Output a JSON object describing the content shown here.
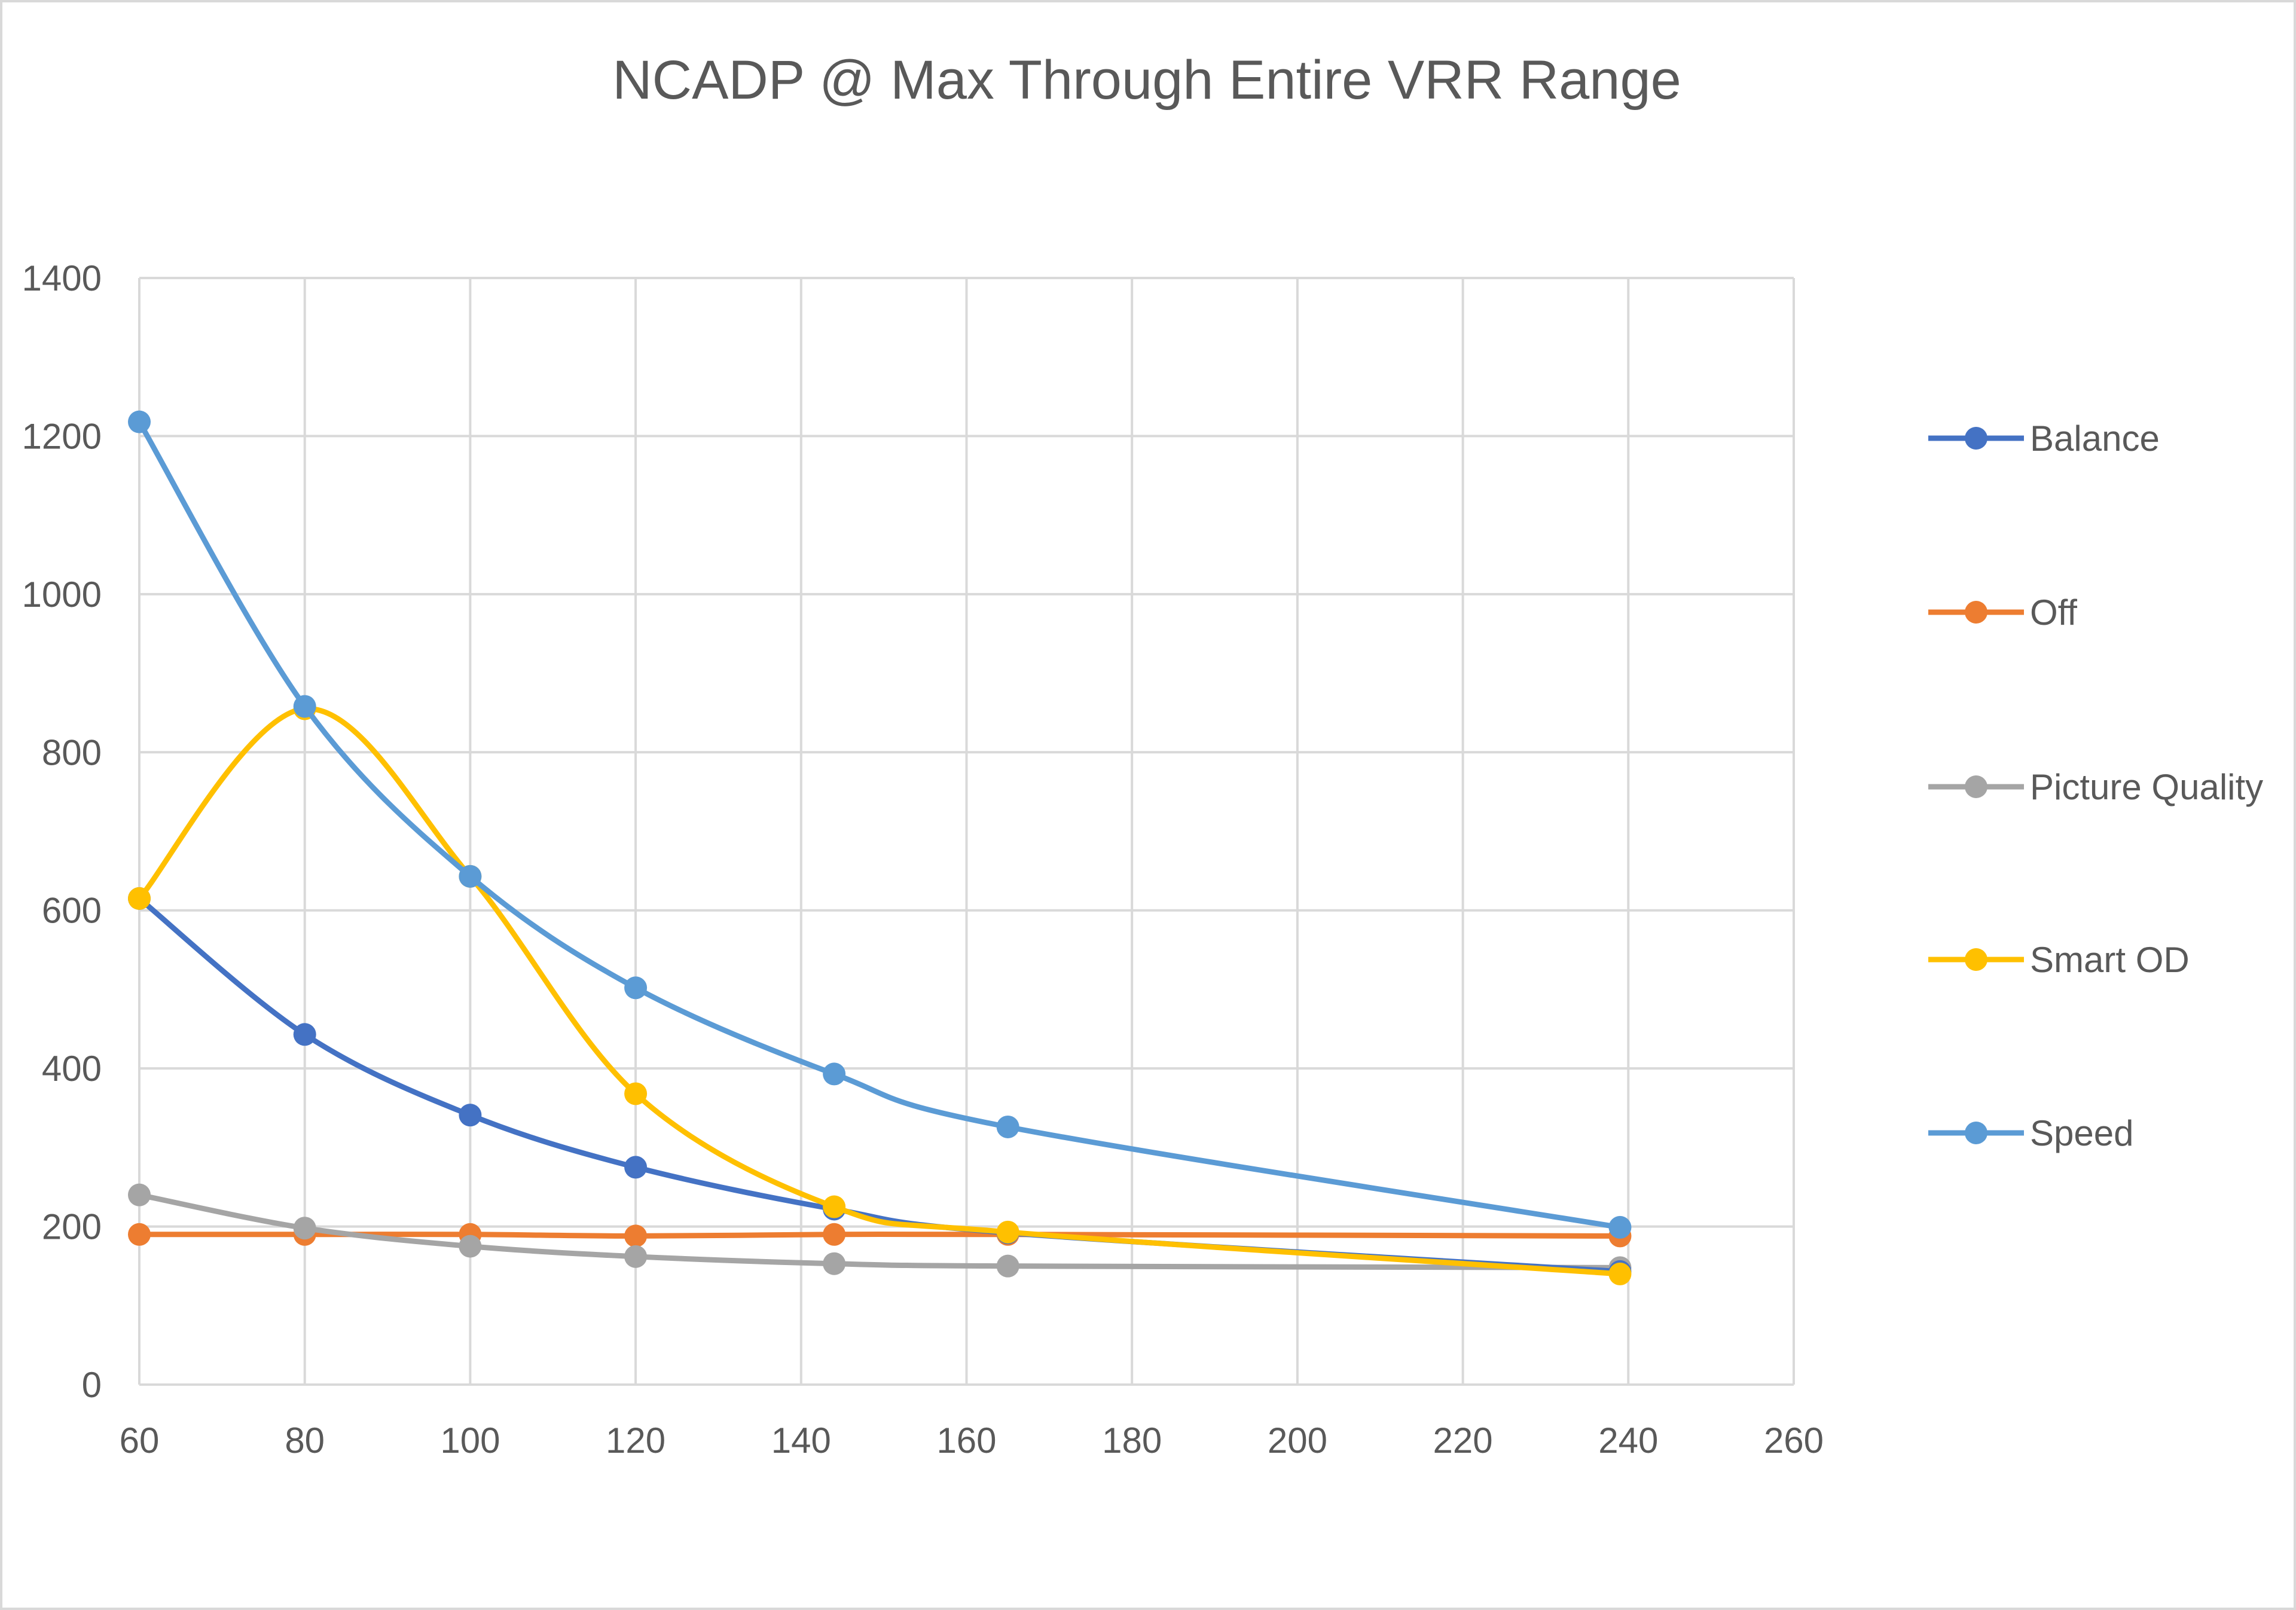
{
  "chart_data": {
    "type": "line",
    "title": "NCADP @ Max Through Entire VRR Range",
    "xlabel": "",
    "ylabel": "",
    "xlim": [
      60,
      260
    ],
    "ylim": [
      0,
      1400
    ],
    "x_ticks": [
      60,
      80,
      100,
      120,
      140,
      160,
      180,
      200,
      220,
      240,
      260
    ],
    "y_ticks": [
      0,
      200,
      400,
      600,
      800,
      1000,
      1200,
      1400
    ],
    "x_tick_labels": [
      "60",
      "80",
      "100",
      "120",
      "140",
      "160",
      "180",
      "200",
      "220",
      "240",
      "260"
    ],
    "y_tick_labels": [
      "0",
      "200",
      "400",
      "600",
      "800",
      "1000",
      "1200",
      "1400"
    ],
    "grid": true,
    "smoothed": true,
    "legend_position": "right",
    "x": [
      60,
      80,
      100,
      120,
      144,
      165,
      239
    ],
    "series": [
      {
        "name": "Balance",
        "color": "#4472C4",
        "values": [
          615,
          443,
          341,
          275,
          222,
          192,
          143
        ]
      },
      {
        "name": "Off",
        "color": "#ED7D31",
        "values": [
          190,
          190,
          190,
          188,
          190,
          190,
          188
        ]
      },
      {
        "name": "Picture Quality",
        "color": "#A5A5A5",
        "values": [
          240,
          198,
          175,
          162,
          153,
          150,
          148
        ]
      },
      {
        "name": "Smart OD",
        "color": "#FFC000",
        "values": [
          615,
          855,
          643,
          368,
          225,
          193,
          140
        ]
      },
      {
        "name": "Speed",
        "color": "#5B9BD5",
        "values": [
          1218,
          858,
          643,
          502,
          393,
          326,
          199
        ]
      }
    ]
  }
}
